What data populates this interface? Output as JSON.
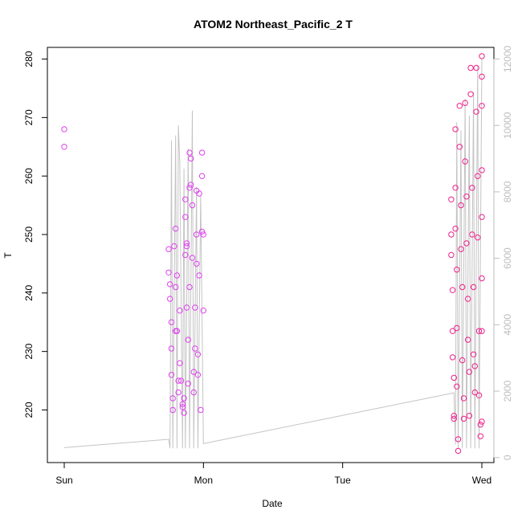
{
  "chart_data": {
    "type": "scatter",
    "title": "ATOM2 Northeast_Pacific_2 T",
    "xlabel": "Date",
    "ylabel": "T",
    "x_ticks": [
      "Sun",
      "Mon",
      "Tue",
      "Wed"
    ],
    "x_range_days": [
      0,
      3
    ],
    "ylim": [
      211,
      282
    ],
    "y_ticks": [
      220,
      230,
      240,
      250,
      260,
      270,
      280
    ],
    "y2lim": [
      -150,
      12350
    ],
    "y2_ticks": [
      0,
      2000,
      4000,
      6000,
      8000,
      10000,
      12000
    ],
    "grid": false,
    "legend": "none",
    "colors": {
      "early_points": "#e040f0",
      "late_points": "#f0208c",
      "secondary_line": "#c4c4c4",
      "secondary_axis": "#bdbdbd"
    },
    "series": [
      {
        "axis": "left",
        "style": "open-circles",
        "points": [
          [
            0.0,
            268
          ],
          [
            0.0,
            265
          ],
          [
            0.75,
            247.5
          ],
          [
            0.75,
            243.5
          ],
          [
            0.76,
            241.5
          ],
          [
            0.76,
            239
          ],
          [
            0.77,
            235
          ],
          [
            0.77,
            230.5
          ],
          [
            0.77,
            226
          ],
          [
            0.78,
            222
          ],
          [
            0.78,
            220
          ],
          [
            0.79,
            248
          ],
          [
            0.8,
            251
          ],
          [
            0.8,
            241
          ],
          [
            0.8,
            233.5
          ],
          [
            0.81,
            243
          ],
          [
            0.81,
            233.5
          ],
          [
            0.82,
            225
          ],
          [
            0.82,
            223
          ],
          [
            0.83,
            237
          ],
          [
            0.83,
            228
          ],
          [
            0.84,
            225
          ],
          [
            0.85,
            221
          ],
          [
            0.85,
            220.5
          ],
          [
            0.86,
            222
          ],
          [
            0.86,
            219.5
          ],
          [
            0.87,
            256
          ],
          [
            0.87,
            253
          ],
          [
            0.87,
            246.5
          ],
          [
            0.88,
            248
          ],
          [
            0.88,
            248.5
          ],
          [
            0.88,
            237.5
          ],
          [
            0.89,
            232
          ],
          [
            0.89,
            224.5
          ],
          [
            0.9,
            264
          ],
          [
            0.9,
            258
          ],
          [
            0.9,
            241
          ],
          [
            0.91,
            263
          ],
          [
            0.91,
            258.5
          ],
          [
            0.92,
            255
          ],
          [
            0.92,
            246
          ],
          [
            0.93,
            226.5
          ],
          [
            0.93,
            223
          ],
          [
            0.94,
            237.5
          ],
          [
            0.94,
            230.5
          ],
          [
            0.95,
            257.5
          ],
          [
            0.95,
            250
          ],
          [
            0.95,
            245
          ],
          [
            0.96,
            229.5
          ],
          [
            0.96,
            226
          ],
          [
            0.97,
            257
          ],
          [
            0.97,
            243
          ],
          [
            0.98,
            220
          ],
          [
            0.99,
            264
          ],
          [
            0.99,
            260
          ],
          [
            0.99,
            250.5
          ],
          [
            1.0,
            250
          ],
          [
            1.0,
            237
          ]
        ]
      },
      {
        "axis": "left",
        "style": "open-circles",
        "points": [
          [
            2.78,
            256
          ],
          [
            2.78,
            250
          ],
          [
            2.78,
            246.5
          ],
          [
            2.79,
            240.5
          ],
          [
            2.79,
            233.5
          ],
          [
            2.79,
            229
          ],
          [
            2.8,
            225.5
          ],
          [
            2.8,
            219
          ],
          [
            2.8,
            218.5
          ],
          [
            2.81,
            268
          ],
          [
            2.81,
            258
          ],
          [
            2.81,
            251
          ],
          [
            2.82,
            244
          ],
          [
            2.82,
            234
          ],
          [
            2.82,
            224
          ],
          [
            2.83,
            215
          ],
          [
            2.83,
            213
          ],
          [
            2.84,
            272
          ],
          [
            2.84,
            265
          ],
          [
            2.85,
            255
          ],
          [
            2.85,
            247.5
          ],
          [
            2.86,
            241
          ],
          [
            2.86,
            228.5
          ],
          [
            2.87,
            222
          ],
          [
            2.87,
            218.5
          ],
          [
            2.88,
            272.5
          ],
          [
            2.88,
            262.5
          ],
          [
            2.89,
            256.5
          ],
          [
            2.89,
            248.5
          ],
          [
            2.9,
            239
          ],
          [
            2.9,
            232
          ],
          [
            2.91,
            226.5
          ],
          [
            2.91,
            219
          ],
          [
            2.92,
            278.5
          ],
          [
            2.92,
            274
          ],
          [
            2.93,
            258
          ],
          [
            2.93,
            250
          ],
          [
            2.94,
            241
          ],
          [
            2.94,
            229.5
          ],
          [
            2.95,
            227.5
          ],
          [
            2.95,
            223
          ],
          [
            2.96,
            278.5
          ],
          [
            2.96,
            271
          ],
          [
            2.97,
            260
          ],
          [
            2.97,
            249.5
          ],
          [
            2.98,
            233.5
          ],
          [
            2.98,
            222.5
          ],
          [
            2.99,
            217.5
          ],
          [
            2.99,
            215.5
          ],
          [
            3.0,
            280.5
          ],
          [
            3.0,
            277
          ],
          [
            3.0,
            272
          ],
          [
            3.0,
            261
          ],
          [
            3.0,
            253
          ],
          [
            3.0,
            242.5
          ],
          [
            3.0,
            233.5
          ],
          [
            3.0,
            218
          ]
        ]
      },
      {
        "axis": "right",
        "style": "line",
        "points": [
          [
            0.0,
            300
          ],
          [
            0.75,
            550
          ],
          [
            0.76,
            280
          ],
          [
            0.77,
            9550
          ],
          [
            0.78,
            280
          ],
          [
            0.8,
            9700
          ],
          [
            0.81,
            280
          ],
          [
            0.82,
            10000
          ],
          [
            0.83,
            8850
          ],
          [
            0.85,
            280
          ],
          [
            0.86,
            8700
          ],
          [
            0.87,
            280
          ],
          [
            0.89,
            9300
          ],
          [
            0.9,
            280
          ],
          [
            0.92,
            10450
          ],
          [
            0.93,
            280
          ],
          [
            0.95,
            8150
          ],
          [
            0.96,
            280
          ],
          [
            0.98,
            7900
          ],
          [
            1.0,
            420
          ],
          [
            2.8,
            1950
          ],
          [
            2.81,
            400
          ],
          [
            2.82,
            10100
          ],
          [
            2.83,
            280
          ],
          [
            2.85,
            9850
          ],
          [
            2.86,
            280
          ],
          [
            2.88,
            10800
          ],
          [
            2.89,
            280
          ],
          [
            2.91,
            10300
          ],
          [
            2.92,
            280
          ],
          [
            2.94,
            11000
          ],
          [
            2.95,
            280
          ],
          [
            2.97,
            11800
          ],
          [
            2.98,
            280
          ],
          [
            3.0,
            12000
          ]
        ]
      }
    ]
  }
}
